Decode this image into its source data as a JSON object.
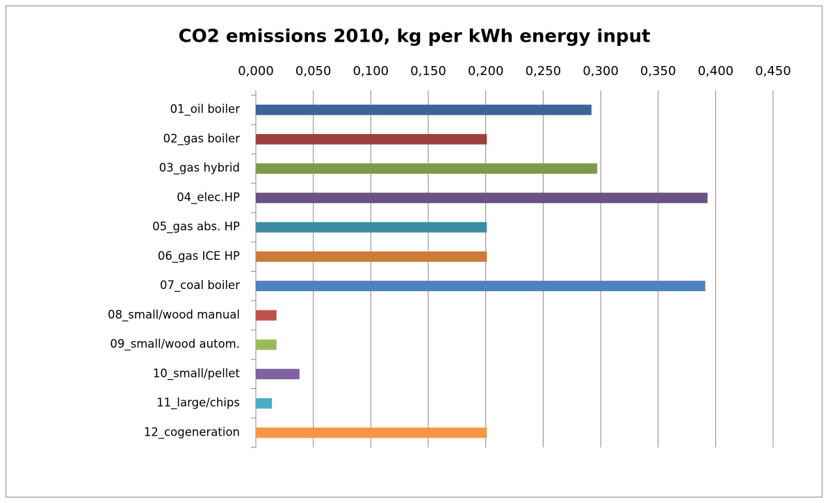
{
  "chart_data": {
    "type": "bar",
    "orientation": "horizontal",
    "title": "CO2 emissions 2010, kg per kWh energy input",
    "categories": [
      "01_oil boiler",
      "02_gas boiler",
      "03_gas hybrid",
      "04_elec.HP",
      "05_gas abs. HP",
      "06_gas ICE HP",
      "07_coal boiler",
      "08_small/wood manual",
      "09_small/wood autom.",
      "10_small/pellet",
      "11_large/chips",
      "12_cogeneration"
    ],
    "values": [
      0.292,
      0.201,
      0.297,
      0.393,
      0.201,
      0.201,
      0.391,
      0.018,
      0.018,
      0.038,
      0.014,
      0.201
    ],
    "colors": [
      "#3c6496",
      "#9e413e",
      "#7f9a48",
      "#695185",
      "#3c8da3",
      "#cc7b38",
      "#4f81bd",
      "#c0504d",
      "#9bbb59",
      "#8064a2",
      "#4bacc6",
      "#f79646"
    ],
    "xlim": [
      0,
      0.45
    ],
    "xticks": [
      {
        "value": 0,
        "label": "0,000"
      },
      {
        "value": 0.05,
        "label": "0,050"
      },
      {
        "value": 0.1,
        "label": "0,100"
      },
      {
        "value": 0.15,
        "label": "0,150"
      },
      {
        "value": 0.2,
        "label": "0,200"
      },
      {
        "value": 0.25,
        "label": "0,250"
      },
      {
        "value": 0.3,
        "label": "0,300"
      },
      {
        "value": 0.35,
        "label": "0,350"
      },
      {
        "value": 0.4,
        "label": "0,400"
      },
      {
        "value": 0.45,
        "label": "0,450"
      }
    ],
    "grid": true,
    "xaxis_position": "top"
  }
}
